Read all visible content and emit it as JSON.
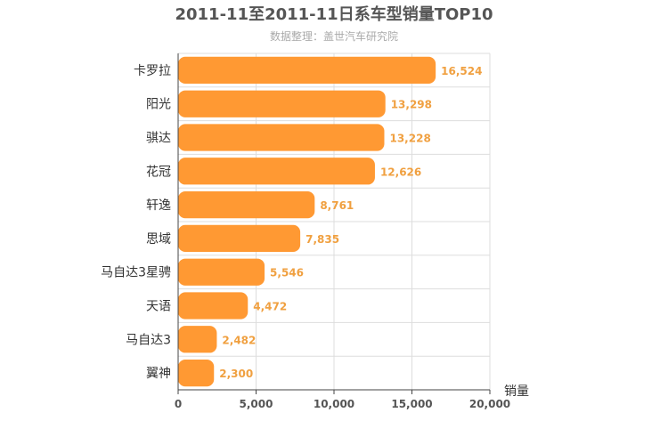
{
  "chart_data": {
    "type": "bar",
    "orientation": "horizontal",
    "title": "2011-11至2011-11日系车型销量TOP10",
    "subtitle": "数据整理：盖世汽车研究院",
    "xlabel": "销量",
    "ylabel": "",
    "categories": [
      "卡罗拉",
      "阳光",
      "骐达",
      "花冠",
      "轩逸",
      "思域",
      "马自达3星骋",
      "天语",
      "马自达3",
      "翼神"
    ],
    "values": [
      16524,
      13298,
      13228,
      12626,
      8761,
      7835,
      5546,
      4472,
      2482,
      2300
    ],
    "value_labels": [
      "16,524",
      "13,298",
      "13,228",
      "12,626",
      "8,761",
      "7,835",
      "5,546",
      "4,472",
      "2,482",
      "2,300"
    ],
    "xlim": [
      0,
      20000
    ],
    "xticks": [
      0,
      5000,
      10000,
      15000,
      20000
    ],
    "xtick_labels": [
      "0",
      "5,000",
      "10,000",
      "15,000",
      "20,000"
    ],
    "grid": true,
    "legend": "none",
    "bar_color": "#ff9933",
    "label_color": "#f0a040"
  }
}
